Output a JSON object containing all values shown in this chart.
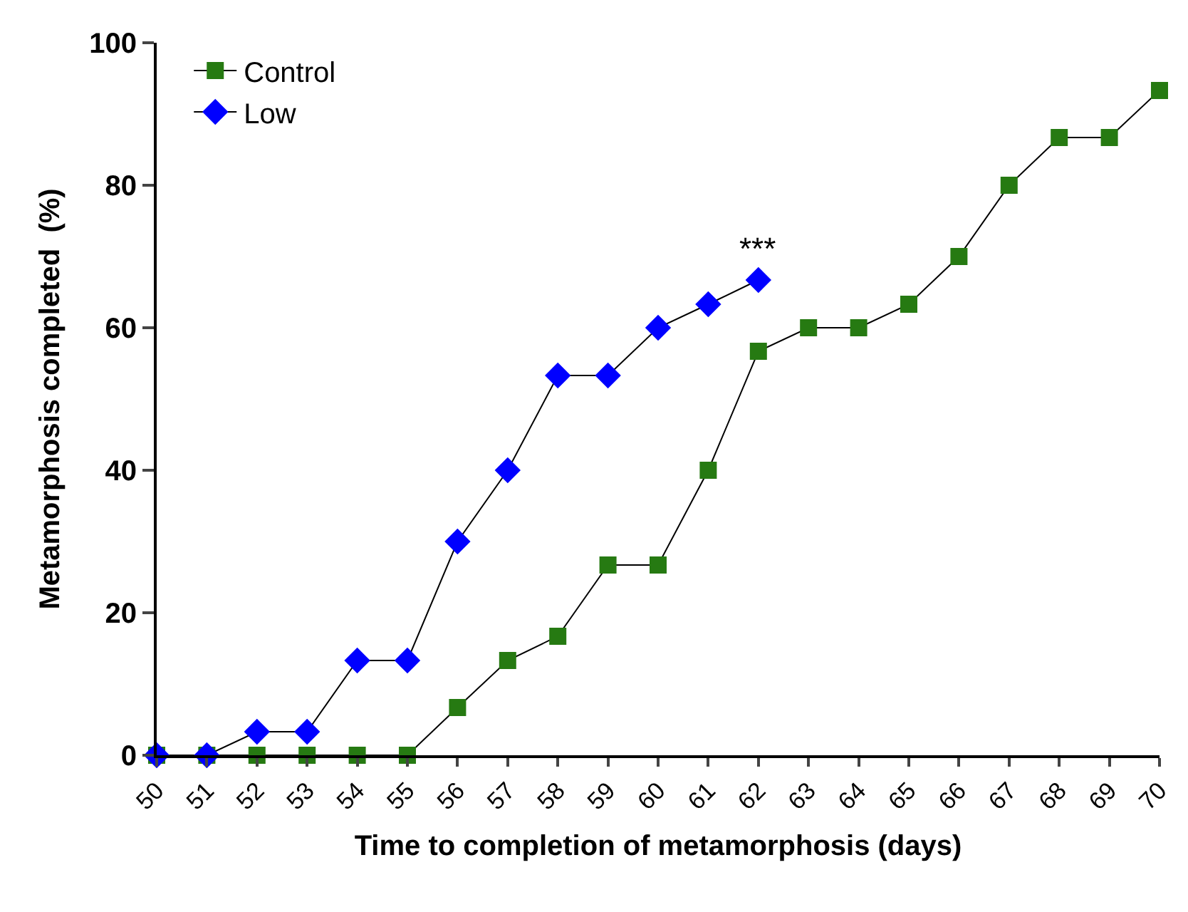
{
  "chart_data": {
    "type": "line",
    "xlabel": "Time to completion of metamorphosis (days)",
    "ylabel": "Metamorphosis completed  (%)",
    "xlim": [
      50,
      70
    ],
    "xticks": [
      50,
      51,
      52,
      53,
      54,
      55,
      56,
      57,
      58,
      59,
      60,
      61,
      62,
      63,
      64,
      65,
      66,
      67,
      68,
      69,
      70
    ],
    "ylim": [
      0,
      100
    ],
    "yticks": [
      0,
      20,
      40,
      60,
      80,
      100
    ],
    "legend": "top left",
    "line_style": "solid",
    "series": [
      {
        "name": "Control",
        "color": "#267a12",
        "marker": "square",
        "x": [
          50,
          51,
          52,
          53,
          54,
          55,
          56,
          57,
          58,
          59,
          60,
          61,
          62,
          63,
          64,
          65,
          66,
          67,
          68,
          69,
          70
        ],
        "values": [
          0,
          0,
          0,
          0,
          0,
          0,
          6.7,
          13.3,
          16.7,
          26.7,
          26.7,
          40,
          56.7,
          60,
          60,
          63.3,
          70,
          80,
          86.7,
          86.7,
          93.3
        ]
      },
      {
        "name": "Low",
        "color": "#0000ff",
        "marker": "diamond",
        "x": [
          50,
          51,
          52,
          53,
          54,
          55,
          56,
          57,
          58,
          59,
          60,
          61,
          62
        ],
        "values": [
          0,
          0,
          3.3,
          3.3,
          13.3,
          13.3,
          30,
          40,
          53.3,
          53.3,
          60,
          63.3,
          66.7
        ]
      }
    ],
    "annotations": [
      "***"
    ]
  }
}
